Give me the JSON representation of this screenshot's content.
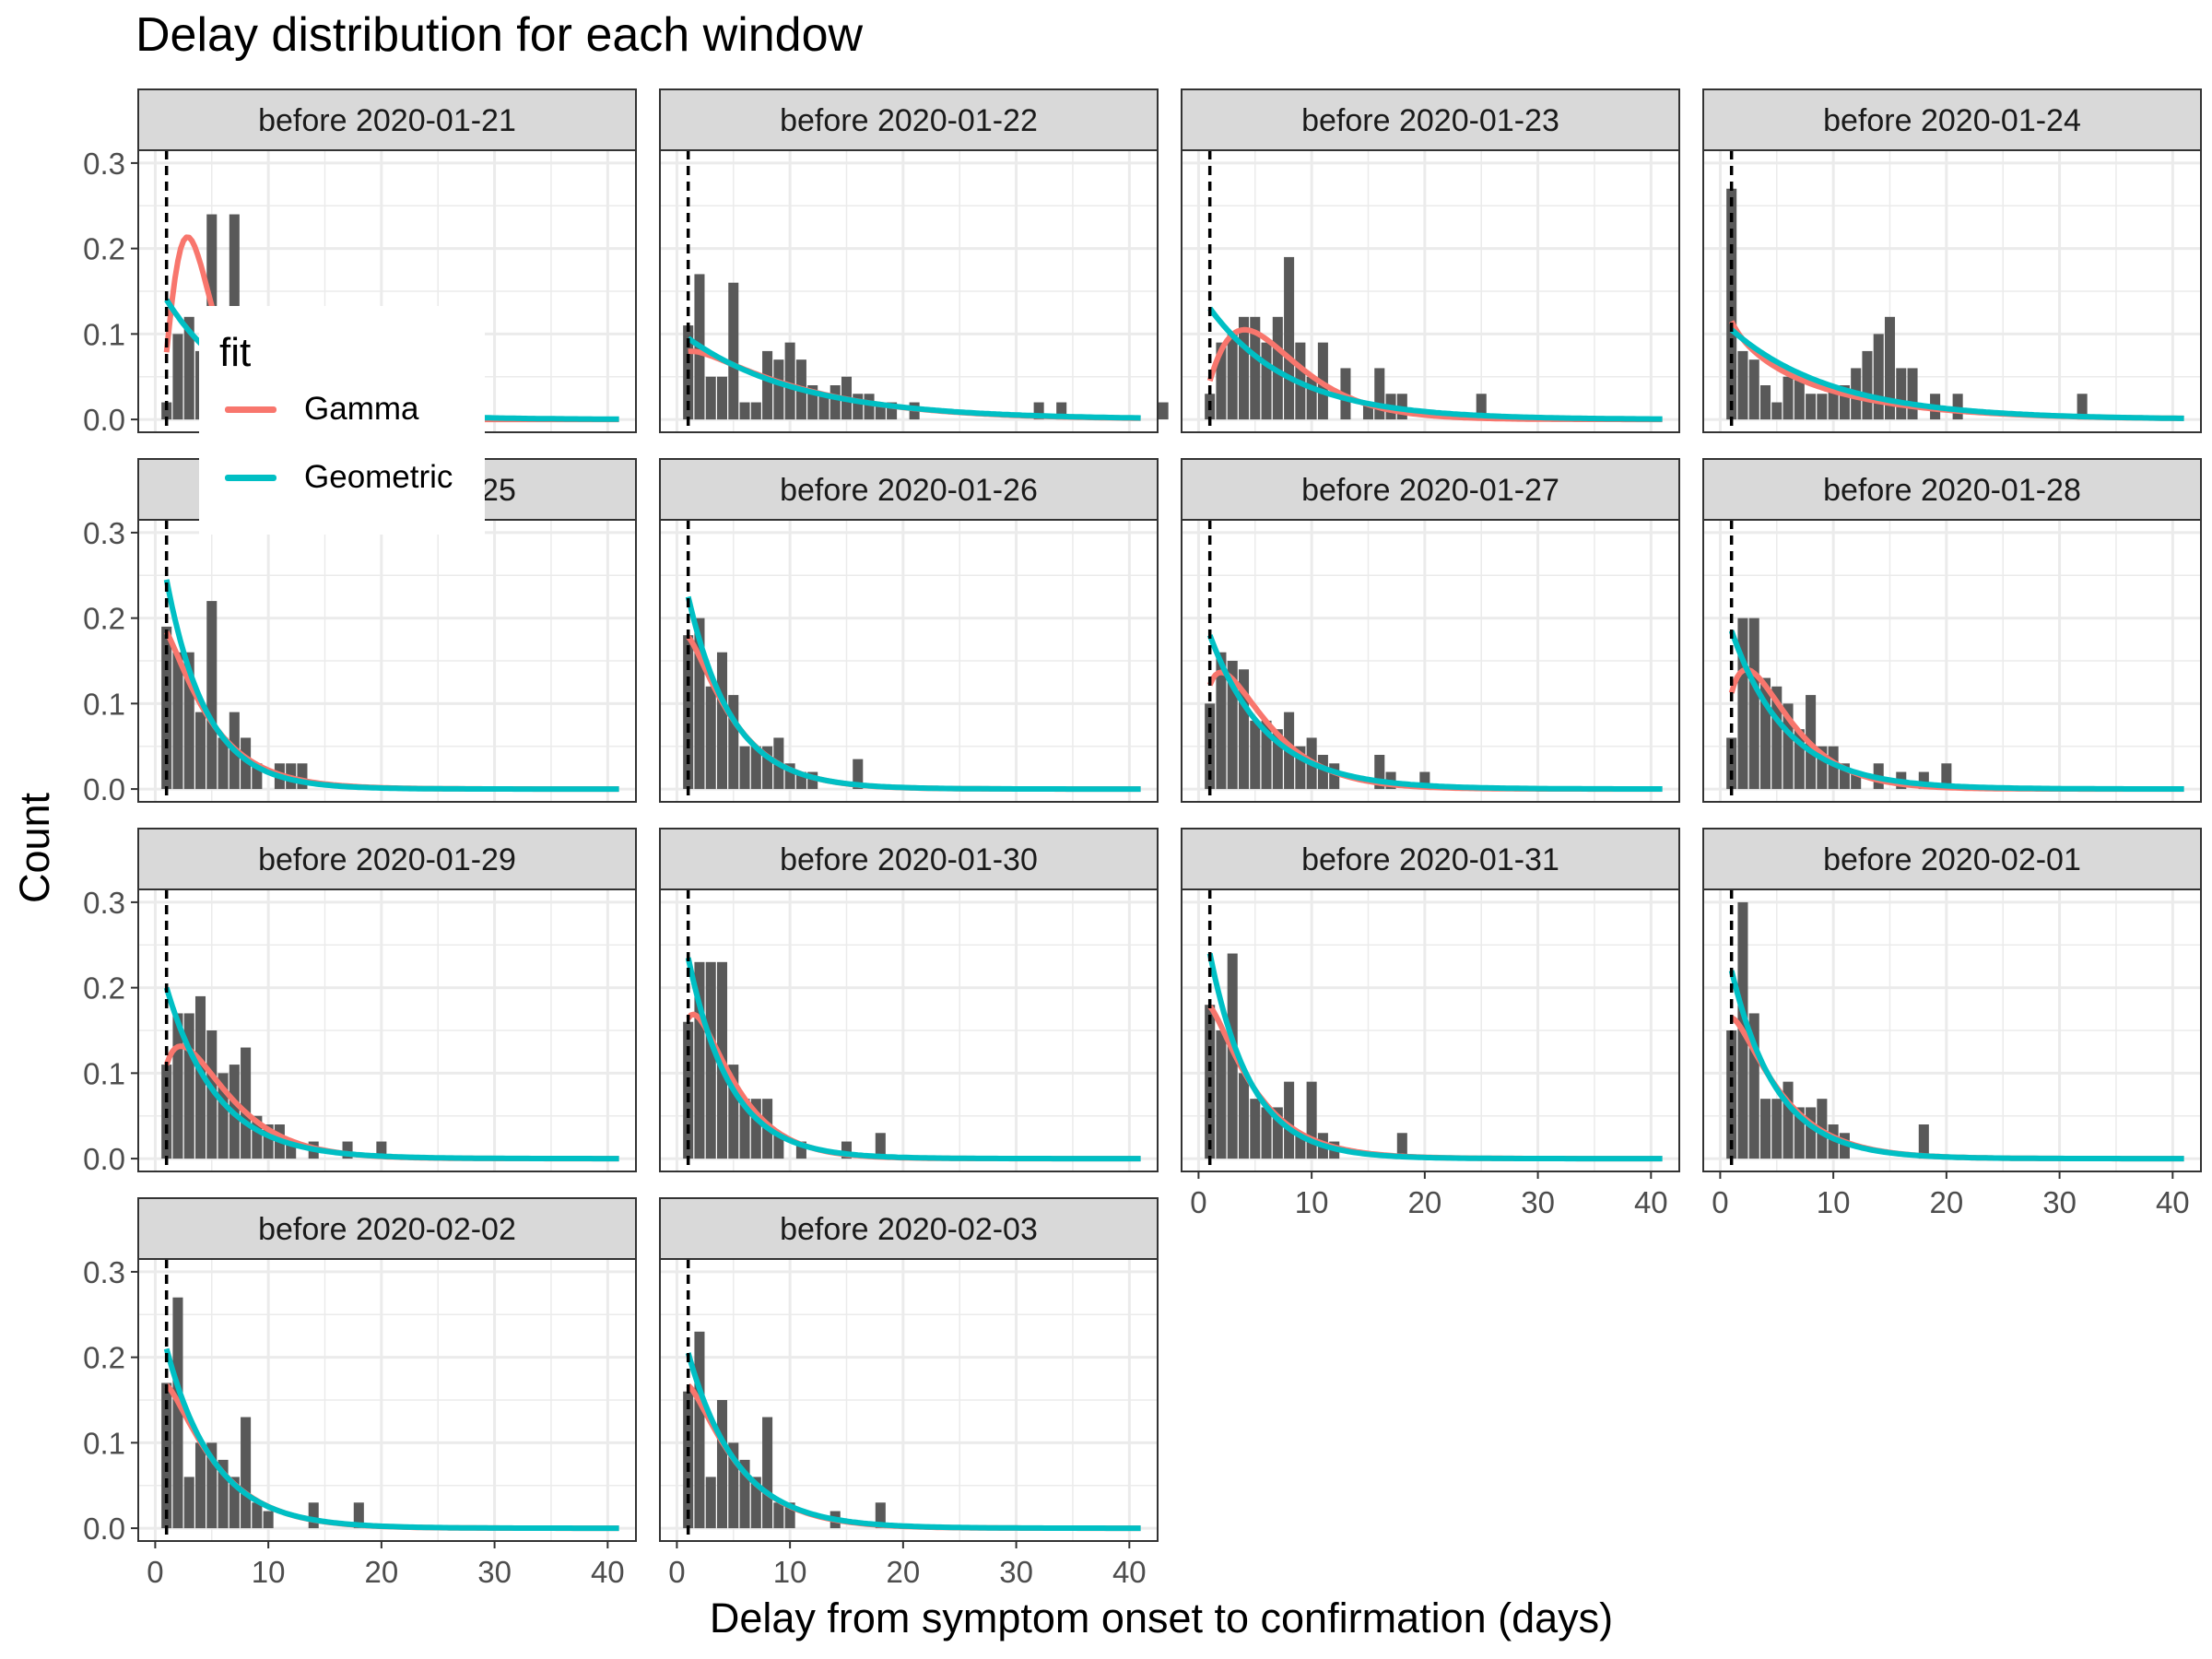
{
  "colors": {
    "gamma": "#F8766D",
    "geometric": "#00BFC4",
    "bar": "#595959",
    "strip": "#D9D9D9",
    "grid": "#EBEBEB"
  },
  "chart_data": {
    "type": "bar",
    "title": "Delay distribution for each window",
    "xlabel": "Delay from symptom onset to confirmation (days)",
    "ylabel": "Count",
    "xlim": [
      -1.5,
      42.5
    ],
    "ylim": [
      -0.015,
      0.315
    ],
    "x_ticks": [
      0,
      10,
      20,
      30,
      40
    ],
    "y_ticks": [
      0.0,
      0.1,
      0.2,
      0.3
    ],
    "y_tick_labels": [
      "0.0",
      "0.1",
      "0.2",
      "0.3"
    ],
    "vline_x": 1,
    "grid": true,
    "legend": {
      "title": "fit",
      "position": "inside top-left",
      "entries": [
        {
          "name": "Gamma",
          "color": "#F8766D"
        },
        {
          "name": "Geometric",
          "color": "#00BFC4"
        }
      ]
    },
    "panels": [
      {
        "label": "before 2020-01-21",
        "bars": [
          [
            1,
            0.02
          ],
          [
            2,
            0.1
          ],
          [
            3,
            0.12
          ],
          [
            4,
            0.08
          ],
          [
            5,
            0.24
          ],
          [
            6,
            0.13
          ],
          [
            7,
            0.24
          ],
          [
            8,
            0.0
          ]
        ],
        "gamma": {
          "shape": 3.5,
          "mean": 4.0
        },
        "geometric": 0.14
      },
      {
        "label": "before 2020-01-22",
        "bars": [
          [
            1,
            0.11
          ],
          [
            2,
            0.17
          ],
          [
            3,
            0.05
          ],
          [
            4,
            0.05
          ],
          [
            5,
            0.16
          ],
          [
            6,
            0.02
          ],
          [
            7,
            0.02
          ],
          [
            8,
            0.08
          ],
          [
            9,
            0.07
          ],
          [
            10,
            0.09
          ],
          [
            11,
            0.07
          ],
          [
            12,
            0.04
          ],
          [
            13,
            0.03
          ],
          [
            14,
            0.04
          ],
          [
            15,
            0.05
          ],
          [
            16,
            0.03
          ],
          [
            17,
            0.03
          ],
          [
            18,
            0.02
          ],
          [
            19,
            0.02
          ],
          [
            21,
            0.02
          ],
          [
            32,
            0.02
          ],
          [
            34,
            0.02
          ],
          [
            43,
            0.02
          ]
        ],
        "gamma": {
          "shape": 1.15,
          "mean": 10.0
        },
        "geometric": 0.095
      },
      {
        "label": "before 2020-01-23",
        "bars": [
          [
            1,
            0.03
          ],
          [
            2,
            0.09
          ],
          [
            3,
            0.1
          ],
          [
            4,
            0.12
          ],
          [
            5,
            0.12
          ],
          [
            6,
            0.09
          ],
          [
            7,
            0.12
          ],
          [
            8,
            0.19
          ],
          [
            9,
            0.09
          ],
          [
            10,
            0.05
          ],
          [
            11,
            0.09
          ],
          [
            13,
            0.06
          ],
          [
            15,
            0.02
          ],
          [
            16,
            0.06
          ],
          [
            17,
            0.03
          ],
          [
            18,
            0.03
          ],
          [
            25,
            0.03
          ]
        ],
        "gamma": {
          "shape": 2.3,
          "mean": 7.2
        },
        "geometric": 0.13
      },
      {
        "label": "before 2020-01-24",
        "bars": [
          [
            1,
            0.27
          ],
          [
            2,
            0.08
          ],
          [
            3,
            0.07
          ],
          [
            4,
            0.04
          ],
          [
            5,
            0.02
          ],
          [
            6,
            0.05
          ],
          [
            7,
            0.05
          ],
          [
            8,
            0.03
          ],
          [
            9,
            0.03
          ],
          [
            10,
            0.04
          ],
          [
            11,
            0.04
          ],
          [
            12,
            0.06
          ],
          [
            13,
            0.08
          ],
          [
            14,
            0.1
          ],
          [
            15,
            0.12
          ],
          [
            16,
            0.06
          ],
          [
            17,
            0.06
          ],
          [
            19,
            0.03
          ],
          [
            21,
            0.03
          ],
          [
            32,
            0.03
          ]
        ],
        "gamma": {
          "shape": 0.85,
          "mean": 8.5
        },
        "geometric": 0.105
      },
      {
        "label": "before 2020-01-25",
        "bars": [
          [
            1,
            0.19
          ],
          [
            2,
            0.16
          ],
          [
            3,
            0.16
          ],
          [
            4,
            0.09
          ],
          [
            5,
            0.22
          ],
          [
            6,
            0.06
          ],
          [
            7,
            0.09
          ],
          [
            8,
            0.06
          ],
          [
            9,
            0.03
          ],
          [
            11,
            0.03
          ],
          [
            12,
            0.03
          ],
          [
            13,
            0.03
          ]
        ],
        "gamma": {
          "shape": 1.15,
          "mean": 4.2
        },
        "geometric": 0.245
      },
      {
        "label": "before 2020-01-26",
        "bars": [
          [
            1,
            0.18
          ],
          [
            2,
            0.2
          ],
          [
            3,
            0.12
          ],
          [
            4,
            0.16
          ],
          [
            5,
            0.11
          ],
          [
            6,
            0.05
          ],
          [
            7,
            0.05
          ],
          [
            8,
            0.05
          ],
          [
            9,
            0.06
          ],
          [
            10,
            0.03
          ],
          [
            11,
            0.02
          ],
          [
            12,
            0.02
          ],
          [
            16,
            0.035
          ]
        ],
        "gamma": {
          "shape": 1.2,
          "mean": 4.3
        },
        "geometric": 0.225
      },
      {
        "label": "before 2020-01-27",
        "bars": [
          [
            1,
            0.1
          ],
          [
            2,
            0.16
          ],
          [
            3,
            0.15
          ],
          [
            4,
            0.14
          ],
          [
            5,
            0.08
          ],
          [
            6,
            0.08
          ],
          [
            7,
            0.07
          ],
          [
            8,
            0.09
          ],
          [
            9,
            0.05
          ],
          [
            10,
            0.06
          ],
          [
            11,
            0.04
          ],
          [
            12,
            0.03
          ],
          [
            16,
            0.04
          ],
          [
            17,
            0.02
          ],
          [
            20,
            0.02
          ]
        ],
        "gamma": {
          "shape": 1.6,
          "mean": 5.3
        },
        "geometric": 0.18
      },
      {
        "label": "before 2020-01-28",
        "bars": [
          [
            1,
            0.06
          ],
          [
            2,
            0.2
          ],
          [
            3,
            0.2
          ],
          [
            4,
            0.13
          ],
          [
            5,
            0.12
          ],
          [
            6,
            0.1
          ],
          [
            7,
            0.07
          ],
          [
            8,
            0.11
          ],
          [
            9,
            0.05
          ],
          [
            10,
            0.05
          ],
          [
            11,
            0.03
          ],
          [
            12,
            0.02
          ],
          [
            14,
            0.03
          ],
          [
            16,
            0.02
          ],
          [
            18,
            0.02
          ],
          [
            20,
            0.03
          ]
        ],
        "gamma": {
          "shape": 1.8,
          "mean": 5.2
        },
        "geometric": 0.185
      },
      {
        "label": "before 2020-01-29",
        "bars": [
          [
            1,
            0.11
          ],
          [
            2,
            0.17
          ],
          [
            3,
            0.17
          ],
          [
            4,
            0.19
          ],
          [
            5,
            0.15
          ],
          [
            6,
            0.1
          ],
          [
            7,
            0.11
          ],
          [
            8,
            0.13
          ],
          [
            9,
            0.05
          ],
          [
            10,
            0.04
          ],
          [
            11,
            0.04
          ],
          [
            12,
            0.02
          ],
          [
            14,
            0.02
          ],
          [
            17,
            0.02
          ],
          [
            20,
            0.02
          ]
        ],
        "gamma": {
          "shape": 1.7,
          "mean": 5.5
        },
        "geometric": 0.2
      },
      {
        "label": "before 2020-01-30",
        "bars": [
          [
            1,
            0.16
          ],
          [
            2,
            0.23
          ],
          [
            3,
            0.23
          ],
          [
            4,
            0.23
          ],
          [
            5,
            0.11
          ],
          [
            6,
            0.07
          ],
          [
            7,
            0.07
          ],
          [
            8,
            0.07
          ],
          [
            9,
            0.03
          ],
          [
            11,
            0.02
          ],
          [
            15,
            0.02
          ],
          [
            18,
            0.03
          ]
        ],
        "gamma": {
          "shape": 1.5,
          "mean": 4.3
        },
        "geometric": 0.235
      },
      {
        "label": "before 2020-01-31",
        "bars": [
          [
            1,
            0.18
          ],
          [
            2,
            0.15
          ],
          [
            3,
            0.24
          ],
          [
            4,
            0.1
          ],
          [
            5,
            0.07
          ],
          [
            6,
            0.06
          ],
          [
            7,
            0.06
          ],
          [
            8,
            0.09
          ],
          [
            9,
            0.03
          ],
          [
            10,
            0.09
          ],
          [
            11,
            0.03
          ],
          [
            12,
            0.02
          ],
          [
            18,
            0.03
          ]
        ],
        "gamma": {
          "shape": 1.2,
          "mean": 4.3
        },
        "geometric": 0.24
      },
      {
        "label": "before 2020-02-01",
        "bars": [
          [
            1,
            0.15
          ],
          [
            2,
            0.3
          ],
          [
            3,
            0.17
          ],
          [
            4,
            0.07
          ],
          [
            5,
            0.07
          ],
          [
            6,
            0.09
          ],
          [
            7,
            0.06
          ],
          [
            8,
            0.06
          ],
          [
            9,
            0.07
          ],
          [
            10,
            0.04
          ],
          [
            11,
            0.03
          ],
          [
            18,
            0.04
          ]
        ],
        "gamma": {
          "shape": 1.25,
          "mean": 4.6
        },
        "geometric": 0.22
      },
      {
        "label": "before 2020-02-02",
        "bars": [
          [
            1,
            0.17
          ],
          [
            2,
            0.27
          ],
          [
            3,
            0.06
          ],
          [
            4,
            0.1
          ],
          [
            5,
            0.1
          ],
          [
            6,
            0.08
          ],
          [
            7,
            0.06
          ],
          [
            8,
            0.13
          ],
          [
            9,
            0.03
          ],
          [
            10,
            0.02
          ],
          [
            14,
            0.03
          ],
          [
            18,
            0.03
          ]
        ],
        "gamma": {
          "shape": 1.2,
          "mean": 4.6
        },
        "geometric": 0.21
      },
      {
        "label": "before 2020-02-03",
        "bars": [
          [
            1,
            0.16
          ],
          [
            2,
            0.23
          ],
          [
            3,
            0.06
          ],
          [
            4,
            0.15
          ],
          [
            5,
            0.1
          ],
          [
            6,
            0.08
          ],
          [
            7,
            0.06
          ],
          [
            8,
            0.13
          ],
          [
            9,
            0.03
          ],
          [
            10,
            0.03
          ],
          [
            14,
            0.02
          ],
          [
            18,
            0.03
          ]
        ],
        "gamma": {
          "shape": 1.2,
          "mean": 4.6
        },
        "geometric": 0.205
      }
    ]
  }
}
